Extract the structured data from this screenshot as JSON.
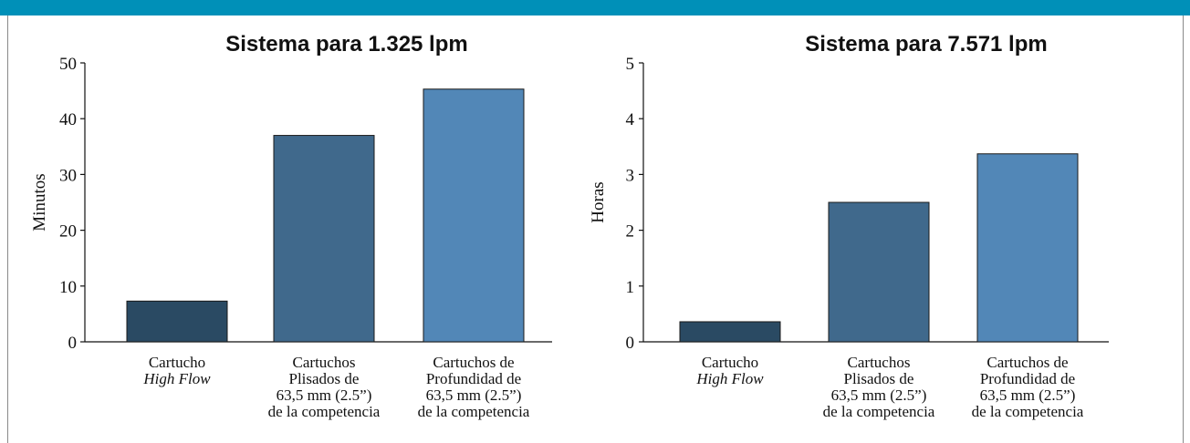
{
  "colors": {
    "top_bar": "#0090b8",
    "series": [
      "#2a4a63",
      "#40698c",
      "#5287b7"
    ]
  },
  "chart_data": [
    {
      "type": "bar",
      "title": "Sistema para 1.325 lpm",
      "ylabel": "Minutos",
      "ylim": [
        0,
        50
      ],
      "yticks": [
        0,
        10,
        20,
        30,
        40,
        50
      ],
      "categories": [
        [
          "Cartucho",
          "High Flow"
        ],
        [
          "Cartuchos",
          "Plisados de",
          "63,5 mm (2.5”)",
          "de la competencia"
        ],
        [
          "Cartuchos de",
          "Profundidad de",
          "63,5 mm (2.5”)",
          "de la competencia"
        ]
      ],
      "values": [
        7.3,
        37,
        45.3
      ]
    },
    {
      "type": "bar",
      "title": "Sistema para 7.571 lpm",
      "ylabel": "Horas",
      "ylim": [
        0,
        5
      ],
      "yticks": [
        0,
        1,
        2,
        3,
        4,
        5
      ],
      "categories": [
        [
          "Cartucho",
          "High Flow"
        ],
        [
          "Cartuchos",
          "Plisados de",
          "63,5 mm (2.5”)",
          "de la competencia"
        ],
        [
          "Cartuchos de",
          "Profundidad de",
          "63,5 mm (2.5”)",
          "de la competencia"
        ]
      ],
      "values": [
        0.36,
        2.5,
        3.37
      ]
    }
  ]
}
